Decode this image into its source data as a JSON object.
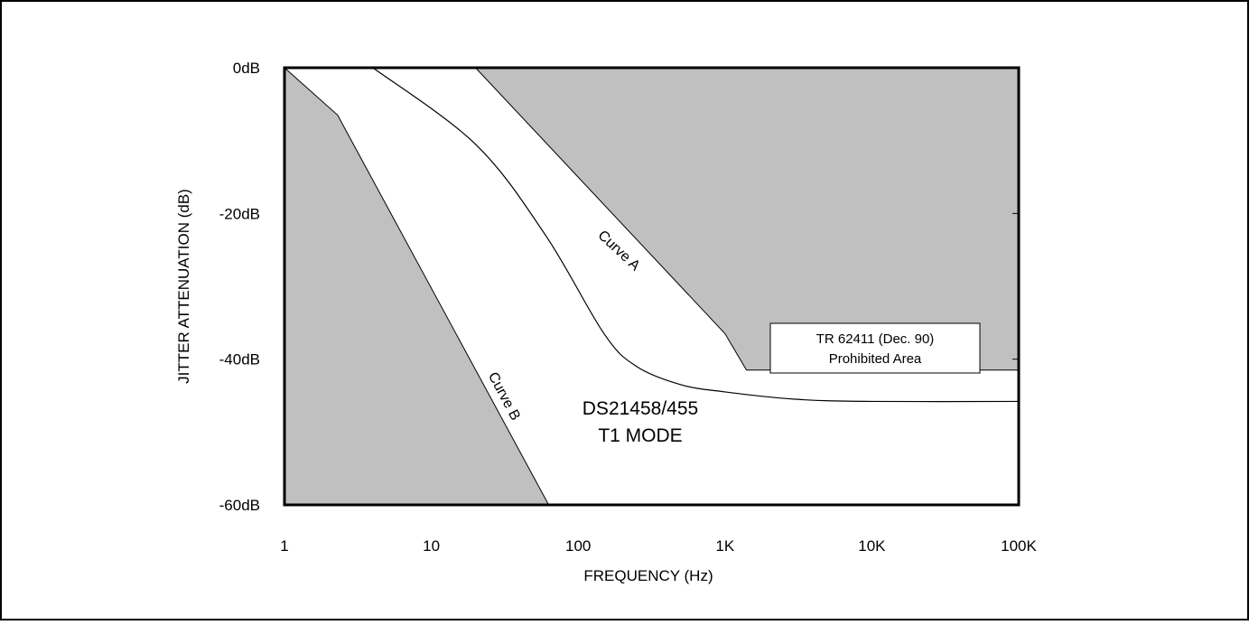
{
  "chart_data": {
    "type": "line",
    "xlabel": "FREQUENCY (Hz)",
    "ylabel": "JITTER ATTENUATION (dB)",
    "x_scale": "log",
    "xlim": [
      1,
      100000
    ],
    "ylim": [
      -60,
      0
    ],
    "x_ticks": [
      {
        "value": 1,
        "label": "1"
      },
      {
        "value": 10,
        "label": "10"
      },
      {
        "value": 100,
        "label": "100"
      },
      {
        "value": 1000,
        "label": "1K"
      },
      {
        "value": 10000,
        "label": "10K"
      },
      {
        "value": 100000,
        "label": "100K"
      }
    ],
    "y_ticks": [
      {
        "value": 0,
        "label": "0dB"
      },
      {
        "value": -20,
        "label": "-20dB"
      },
      {
        "value": -40,
        "label": "-40dB"
      },
      {
        "value": -60,
        "label": "-60dB"
      }
    ],
    "grid": false,
    "colors": {
      "prohibited_fill": "#c0c0c0",
      "line": "#000000",
      "background": "#ffffff"
    },
    "series": [
      {
        "name": "Curve A",
        "label": "Curve A",
        "points": [
          [
            20,
            0
          ],
          [
            1000,
            -36.5
          ],
          [
            1400,
            -41.5
          ],
          [
            100000,
            -41.5
          ]
        ]
      },
      {
        "name": "Curve B",
        "label": "Curve B",
        "points": [
          [
            1,
            0
          ],
          [
            2.3,
            -6.5
          ],
          [
            63,
            -60
          ]
        ]
      },
      {
        "name": "DS21458/455 T1 MODE",
        "points": [
          [
            4,
            0
          ],
          [
            20,
            -10.5
          ],
          [
            60,
            -23
          ],
          [
            150,
            -36.5
          ],
          [
            250,
            -41
          ],
          [
            500,
            -43.5
          ],
          [
            1000,
            -44.5
          ],
          [
            3000,
            -45.5
          ],
          [
            10000,
            -45.8
          ],
          [
            100000,
            -45.8
          ]
        ]
      }
    ],
    "regions": [
      {
        "name": "prohibited-upper",
        "boundary": "Curve A",
        "side": "above"
      },
      {
        "name": "prohibited-lower",
        "boundary": "Curve B",
        "side": "below"
      }
    ],
    "annotations": {
      "curve_a": "Curve A",
      "curve_b": "Curve B",
      "device_line1": "DS21458/455",
      "device_line2": "T1 MODE",
      "area_line1": "TR 62411 (Dec. 90)",
      "area_line2": "Prohibited Area"
    }
  }
}
